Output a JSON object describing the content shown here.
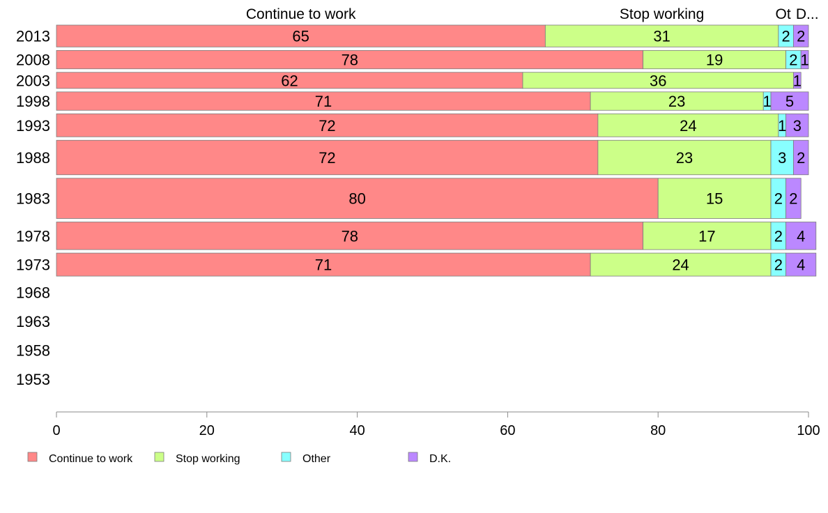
{
  "chart_data": {
    "type": "bar",
    "orientation": "horizontal",
    "stacked": true,
    "categories": [
      "2013",
      "2008",
      "2003",
      "1998",
      "1993",
      "1988",
      "1983",
      "1978",
      "1973",
      "1968",
      "1963",
      "1958",
      "1953"
    ],
    "series": [
      {
        "name": "Continue to work",
        "color": "#ff8888",
        "values": [
          65,
          78,
          62,
          71,
          72,
          72,
          80,
          78,
          71,
          null,
          null,
          null,
          null
        ]
      },
      {
        "name": "Stop working",
        "color": "#ccff88",
        "values": [
          31,
          19,
          36,
          23,
          24,
          23,
          15,
          17,
          24,
          null,
          null,
          null,
          null
        ]
      },
      {
        "name": "Other",
        "color": "#88ffff",
        "values": [
          2,
          2,
          0,
          1,
          1,
          3,
          2,
          2,
          2,
          null,
          null,
          null,
          null
        ]
      },
      {
        "name": "D.K.",
        "color": "#bb88ff",
        "values": [
          2,
          1,
          1,
          5,
          3,
          2,
          2,
          4,
          4,
          null,
          null,
          null,
          null
        ]
      }
    ],
    "bar_weights": [
      0.95,
      0.8,
      0.7,
      0.8,
      1.0,
      1.5,
      1.75,
      1.2,
      1.0,
      0,
      0,
      0,
      0
    ],
    "top_labels": [
      "Continue to work",
      "Stop working",
      "Ot",
      "D..."
    ],
    "x_ticks": [
      "0",
      "20",
      "40",
      "60",
      "80",
      "100"
    ],
    "xlim": [
      0,
      100
    ],
    "legend_position": "bottom-left",
    "grid": false
  }
}
